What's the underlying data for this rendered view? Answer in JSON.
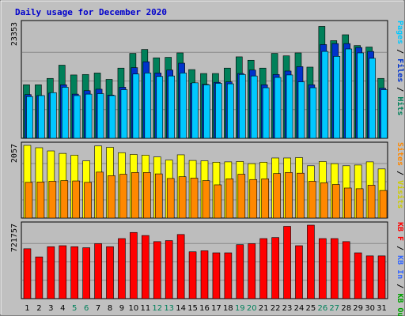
{
  "chart_data": {
    "type": "bar",
    "title": "Daily usage for December 2020",
    "categories": [
      "1",
      "2",
      "3",
      "4",
      "5",
      "6",
      "7",
      "8",
      "9",
      "10",
      "11",
      "12",
      "13",
      "14",
      "15",
      "16",
      "17",
      "18",
      "19",
      "20",
      "21",
      "22",
      "23",
      "24",
      "25",
      "26",
      "27",
      "28",
      "29",
      "30",
      "31"
    ],
    "weekend_days": [
      "5",
      "6",
      "12",
      "13",
      "19",
      "20",
      "26",
      "27"
    ],
    "panels": [
      {
        "id": "pages-files-hits",
        "max_label": "23353",
        "ylim": [
          0,
          23353
        ],
        "legend": [
          {
            "text": "Pages",
            "color": "#00c8ff"
          },
          {
            "text": "Files",
            "color": "#0033cc"
          },
          {
            "text": "Hits",
            "color": "#00805a"
          }
        ],
        "series": [
          {
            "name": "Hits",
            "color": "#00805a",
            "values": [
              10900,
              10900,
              12200,
              14900,
              12900,
              13000,
              13300,
              12000,
              14300,
              17300,
              18100,
              16400,
              16500,
              17400,
              14000,
              13200,
              13200,
              14300,
              16600,
              15900,
              14300,
              17300,
              16800,
              17400,
              14500,
              22800,
              19900,
              21100,
              18900,
              18600,
              12200
            ]
          },
          {
            "name": "Files",
            "color": "#0033cc",
            "values": [
              8900,
              8700,
              9200,
              10900,
              9000,
              9700,
              10000,
              8800,
              10400,
              14400,
              15600,
              13300,
              13900,
              15300,
              11200,
              11000,
              11400,
              11500,
              13200,
              13900,
              10900,
              13000,
              13700,
              14600,
              10900,
              19100,
              19300,
              19300,
              18500,
              17700,
              10200
            ]
          },
          {
            "name": "Pages",
            "color": "#00c8ff",
            "values": [
              8500,
              8700,
              9300,
              10400,
              8700,
              9000,
              9100,
              8700,
              9900,
              13100,
              13300,
              12600,
              12700,
              13300,
              11300,
              10900,
              11200,
              11100,
              13000,
              12700,
              10300,
              12400,
              12900,
              11500,
              10300,
              17700,
              16700,
              18200,
              17400,
              16300,
              9900
            ]
          }
        ]
      },
      {
        "id": "visits-sites",
        "max_label": "2057",
        "ylim": [
          0,
          2057
        ],
        "legend": [
          {
            "text": "Sites",
            "color": "#ff8800"
          },
          {
            "text": "Visits",
            "color": "#cccc00"
          }
        ],
        "series": [
          {
            "name": "Visits",
            "color": "#ffff00",
            "values": [
              2057,
              1990,
              1900,
              1830,
              1780,
              1620,
              2040,
              2000,
              1850,
              1800,
              1780,
              1730,
              1640,
              1790,
              1630,
              1620,
              1580,
              1590,
              1600,
              1540,
              1580,
              1700,
              1700,
              1710,
              1480,
              1600,
              1540,
              1480,
              1500,
              1590,
              1390
            ]
          },
          {
            "name": "Sites",
            "color": "#ff8800",
            "values": [
              1010,
              1020,
              1040,
              1060,
              1050,
              1010,
              1300,
              1200,
              1240,
              1290,
              1290,
              1250,
              1120,
              1170,
              1130,
              1060,
              940,
              1110,
              1240,
              1090,
              1110,
              1260,
              1290,
              1270,
              1040,
              1000,
              950,
              850,
              830,
              930,
              780
            ]
          }
        ]
      },
      {
        "id": "kbytes",
        "max_label": "721757",
        "ylim": [
          0,
          721757
        ],
        "legend": [
          {
            "text": "KB F",
            "color": "#ff0000"
          },
          {
            "text": "KB In",
            "color": "#3366ff"
          },
          {
            "text": "KB Out",
            "color": "#00a000"
          }
        ],
        "series": [
          {
            "name": "KB F",
            "color": "#ff0000",
            "values": [
              490000,
              410000,
              510000,
              520000,
              510000,
              500000,
              540000,
              510000,
              590000,
              650000,
              620000,
              560000,
              570000,
              630000,
              460000,
              470000,
              450000,
              450000,
              530000,
              540000,
              590000,
              600000,
              710000,
              520000,
              721757,
              590000,
              590000,
              560000,
              450000,
              420000,
              420000
            ]
          }
        ]
      }
    ]
  }
}
